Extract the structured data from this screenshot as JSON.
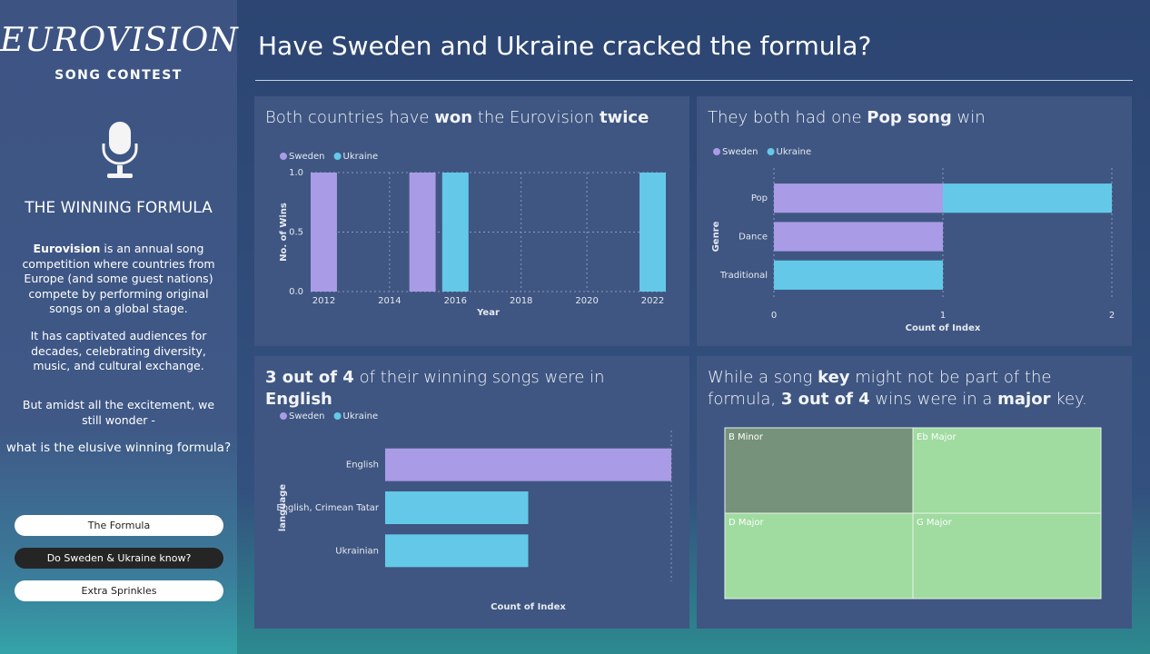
{
  "logo": {
    "title": "EUROVISION",
    "subtitle": "SONG CONTEST"
  },
  "sidebar": {
    "heading": "THE WINNING FORMULA",
    "intro": [
      "Eurovision",
      " is an annual song competition where countries from Europe (and some guest nations) compete by performing original songs on a global stage."
    ],
    "paragraphs": [
      "It has captivated audiences for decades, celebrating diversity, music, and cultural exchange.",
      "But amidst all the excitement, we still wonder -"
    ],
    "question": "what is the elusive winning formula?"
  },
  "nav": [
    "The Formula",
    "Do Sweden & Ukraine know?",
    "Extra Sprinkles"
  ],
  "header": {
    "title": "Have Sweden and Ukraine cracked the formula?"
  },
  "chart_data": [
    {
      "type": "bar",
      "title": [
        "Both countries have ",
        "won",
        " the Eurovision ",
        "twice"
      ],
      "series": [
        {
          "name": "Sweden",
          "color": "#a99be6",
          "x": [
            2012,
            2015
          ],
          "values": [
            1,
            1
          ]
        },
        {
          "name": "Ukraine",
          "color": "#64c9e8",
          "x": [
            2016,
            2022
          ],
          "values": [
            1,
            1
          ]
        }
      ],
      "xlim": [
        2011.6,
        2022.4
      ],
      "xticks": [
        2012,
        2014,
        2016,
        2018,
        2020,
        2022
      ],
      "ylim": [
        0,
        1
      ],
      "yticks": [
        {
          "value": 0,
          "label": "0.0"
        },
        {
          "value": 0.5,
          "label": "0.5"
        },
        {
          "value": 1,
          "label": "1.0"
        }
      ],
      "xlabel": "Year",
      "ylabel": "No. of Wins",
      "grid": true
    },
    {
      "type": "bar",
      "horizontal": true,
      "stacked": true,
      "title": [
        "They both had one ",
        "Pop song",
        " win"
      ],
      "categories": [
        "Pop",
        "Dance",
        "Traditional"
      ],
      "series": [
        {
          "name": "Sweden",
          "color": "#a99be6",
          "values": [
            1,
            1,
            null
          ]
        },
        {
          "name": "Ukraine",
          "color": "#64c9e8",
          "values": [
            1,
            null,
            1
          ]
        }
      ],
      "xlim": [
        0,
        2
      ],
      "xticks": [
        0,
        1,
        2
      ],
      "xlabel": "Count of Index",
      "ylabel": "Genre",
      "grid": true
    },
    {
      "type": "bar",
      "horizontal": true,
      "stacked": true,
      "title": [
        "",
        "3 out of 4",
        " of their winning songs were in ",
        "English"
      ],
      "categories": [
        "English",
        "English, Crimean Tatar",
        "Ukrainian"
      ],
      "series": [
        {
          "name": "Sweden",
          "color": "#a99be6",
          "values": [
            2,
            null,
            null
          ]
        },
        {
          "name": "Ukraine",
          "color": "#64c9e8",
          "values": [
            null,
            1,
            1
          ]
        }
      ],
      "xlim": [
        0,
        2
      ],
      "xlabel": "Count of Index",
      "ylabel": "language",
      "grid": true
    },
    {
      "type": "treemap",
      "title": [
        "While a song ",
        "key",
        " might not be part of the formula, ",
        "3 out of 4",
        " wins were in a ",
        "major",
        " key."
      ],
      "categories": [
        "B Minor",
        "D Major",
        "Eb Major",
        "G Major"
      ],
      "values": [
        1,
        1,
        1,
        1
      ],
      "colors": [
        "#76927a",
        "#a0dba0",
        "#a0dba0",
        "#a0dba0"
      ]
    }
  ]
}
